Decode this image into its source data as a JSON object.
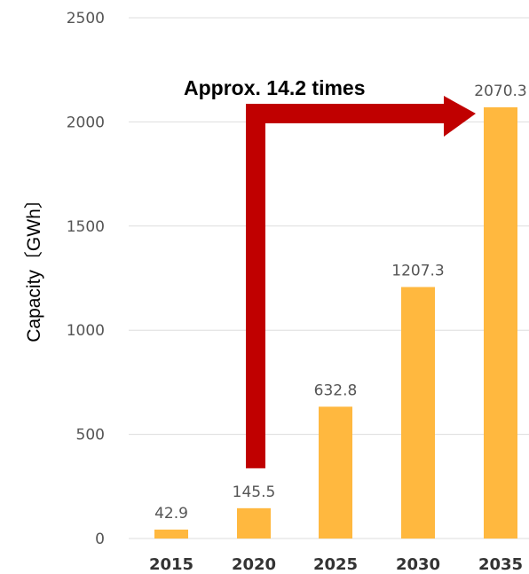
{
  "chart_data": {
    "type": "bar",
    "categories": [
      "2015",
      "2020",
      "2025",
      "2030",
      "2035"
    ],
    "values": [
      42.9,
      145.5,
      632.8,
      1207.3,
      2070.3
    ],
    "value_labels": [
      "42.9",
      "145.5",
      "632.8",
      "1207.3",
      "2070.3"
    ],
    "ylabel": "Capacity〔GWh〕",
    "xlabel": "",
    "ylim": [
      0,
      2500
    ],
    "yticks": [
      "0",
      "500",
      "1000",
      "1500",
      "2000",
      "2500"
    ],
    "grid": true,
    "bar_color": "#FFB83F",
    "annotation": {
      "text": "Approx. 14.2 times",
      "from_category": "2020",
      "to_category": "2035",
      "arrow_color": "#C00000"
    }
  }
}
